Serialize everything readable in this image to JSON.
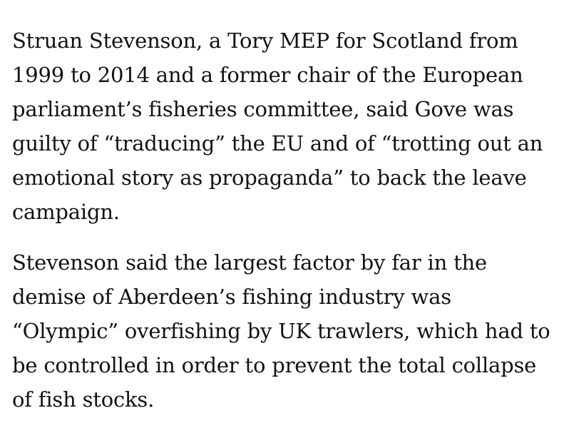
{
  "article": {
    "paragraphs": [
      "Struan Stevenson, a Tory MEP for Scotland from 1999 to 2014 and a former chair of the European parliament’s fisheries committee, said Gove was guilty of “traducing” the EU and of “trotting out an emotional story as propaganda” to back the leave campaign.",
      "Stevenson said the largest factor by far in the demise of Aberdeen’s fishing industry was “Olympic” overfishing by UK trawlers, which had to be controlled in order to prevent the total collapse of fish stocks."
    ]
  }
}
